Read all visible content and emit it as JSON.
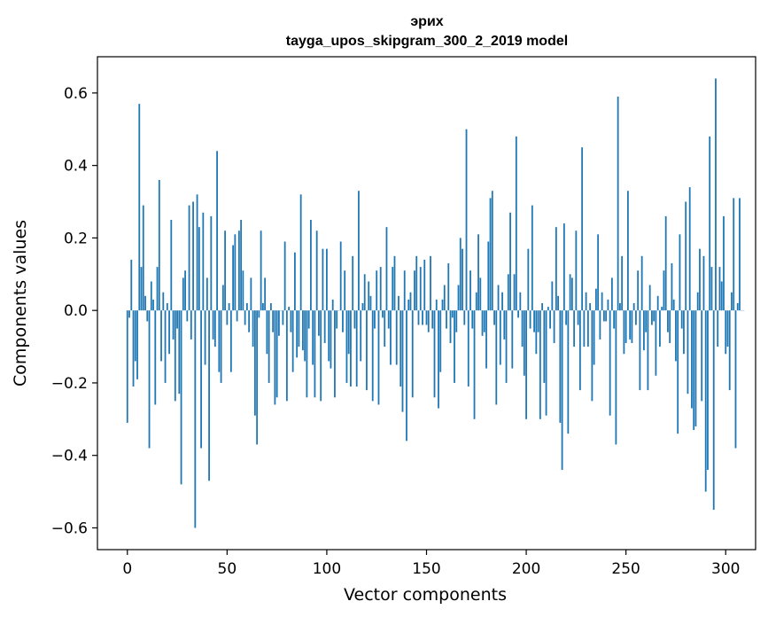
{
  "chart_data": {
    "type": "bar",
    "title": "эрих",
    "subtitle": "tayga_upos_skipgram_300_2_2019 model",
    "xlabel": "Vector components",
    "ylabel": "Components values",
    "xlim": [
      -15,
      315
    ],
    "ylim": [
      -0.66,
      0.7
    ],
    "xticks": [
      0,
      50,
      100,
      150,
      200,
      250,
      300
    ],
    "xtick_labels": [
      "0",
      "50",
      "100",
      "150",
      "200",
      "250",
      "300"
    ],
    "yticks": [
      -0.6,
      -0.4,
      -0.2,
      0.0,
      0.2,
      0.4,
      0.6
    ],
    "ytick_labels": [
      "−0.6",
      "−0.4",
      "−0.2",
      "0.0",
      "0.2",
      "0.4",
      "0.6"
    ],
    "grid": false,
    "color": "#1f77b4",
    "values": [
      -0.31,
      -0.02,
      0.14,
      -0.21,
      -0.14,
      -0.19,
      0.57,
      0.12,
      0.29,
      0.04,
      -0.03,
      -0.38,
      0.08,
      0.03,
      -0.26,
      0.12,
      0.36,
      -0.14,
      0.05,
      -0.2,
      0.02,
      -0.12,
      0.25,
      -0.08,
      -0.25,
      -0.05,
      -0.23,
      -0.48,
      0.09,
      0.11,
      -0.03,
      0.29,
      -0.08,
      0.3,
      -0.6,
      0.32,
      0.23,
      -0.38,
      0.27,
      -0.15,
      0.09,
      -0.47,
      0.26,
      -0.08,
      -0.1,
      0.44,
      -0.17,
      -0.2,
      0.07,
      0.22,
      -0.04,
      0.02,
      -0.17,
      0.18,
      0.21,
      -0.03,
      0.22,
      0.25,
      0.11,
      -0.04,
      0.02,
      -0.06,
      0.09,
      -0.1,
      -0.29,
      -0.37,
      -0.02,
      0.22,
      0.02,
      0.09,
      -0.12,
      -0.2,
      0.02,
      -0.06,
      -0.26,
      -0.24,
      -0.07,
      0.0,
      -0.04,
      0.19,
      -0.25,
      0.01,
      -0.06,
      -0.17,
      0.16,
      -0.13,
      -0.1,
      0.32,
      -0.11,
      -0.14,
      -0.24,
      -0.05,
      0.25,
      -0.15,
      -0.24,
      0.22,
      -0.07,
      -0.25,
      0.17,
      -0.09,
      0.17,
      -0.14,
      -0.16,
      0.03,
      -0.24,
      -0.05,
      0.0,
      0.19,
      -0.06,
      0.11,
      -0.2,
      -0.12,
      -0.21,
      0.15,
      -0.05,
      -0.21,
      0.33,
      -0.14,
      0.02,
      0.1,
      -0.22,
      0.08,
      0.04,
      -0.25,
      -0.05,
      0.11,
      -0.26,
      0.12,
      -0.02,
      -0.1,
      0.23,
      -0.05,
      -0.15,
      0.12,
      0.15,
      -0.15,
      0.04,
      -0.21,
      -0.28,
      0.11,
      -0.36,
      0.03,
      0.05,
      -0.24,
      0.11,
      0.15,
      -0.04,
      0.12,
      -0.04,
      0.14,
      -0.04,
      -0.06,
      0.15,
      -0.05,
      -0.24,
      0.03,
      -0.27,
      -0.17,
      0.03,
      0.07,
      -0.05,
      0.13,
      -0.09,
      -0.02,
      -0.2,
      -0.06,
      0.07,
      0.2,
      0.17,
      -0.04,
      0.5,
      -0.21,
      0.11,
      -0.05,
      -0.3,
      0.05,
      0.21,
      0.09,
      -0.07,
      -0.06,
      -0.16,
      0.19,
      0.31,
      0.33,
      -0.04,
      -0.26,
      0.07,
      -0.15,
      0.05,
      -0.08,
      -0.2,
      0.1,
      0.27,
      -0.16,
      0.1,
      0.48,
      -0.02,
      0.05,
      -0.1,
      -0.18,
      -0.3,
      0.17,
      -0.05,
      0.29,
      -0.06,
      -0.12,
      -0.06,
      -0.3,
      0.02,
      -0.2,
      -0.29,
      0.01,
      -0.05,
      0.08,
      -0.09,
      0.23,
      0.04,
      -0.31,
      -0.44,
      0.24,
      -0.04,
      -0.34,
      0.1,
      0.09,
      -0.1,
      0.22,
      -0.04,
      -0.22,
      0.45,
      -0.1,
      0.05,
      -0.1,
      0.02,
      -0.25,
      -0.15,
      0.06,
      0.21,
      -0.08,
      0.05,
      -0.03,
      -0.03,
      0.03,
      -0.29,
      0.09,
      -0.05,
      -0.37,
      0.59,
      0.02,
      0.15,
      -0.12,
      -0.09,
      0.33,
      -0.08,
      -0.09,
      0.02,
      -0.04,
      0.11,
      -0.22,
      0.15,
      -0.11,
      -0.06,
      -0.22,
      0.07,
      -0.04,
      -0.03,
      -0.18,
      0.04,
      -0.1,
      0.01,
      0.11,
      0.26,
      -0.06,
      -0.09,
      0.13,
      0.03,
      -0.14,
      -0.34,
      0.21,
      -0.05,
      -0.12,
      0.3,
      -0.23,
      0.34,
      -0.27,
      -0.33,
      -0.32,
      0.05,
      0.17,
      -0.25,
      0.15,
      -0.5,
      -0.44,
      0.48,
      0.12,
      -0.55,
      0.64,
      -0.1,
      0.12,
      0.08,
      0.26,
      -0.12,
      -0.1,
      -0.22,
      0.05,
      0.31,
      -0.38,
      0.02,
      0.31,
      0.0,
      0.0
    ]
  }
}
